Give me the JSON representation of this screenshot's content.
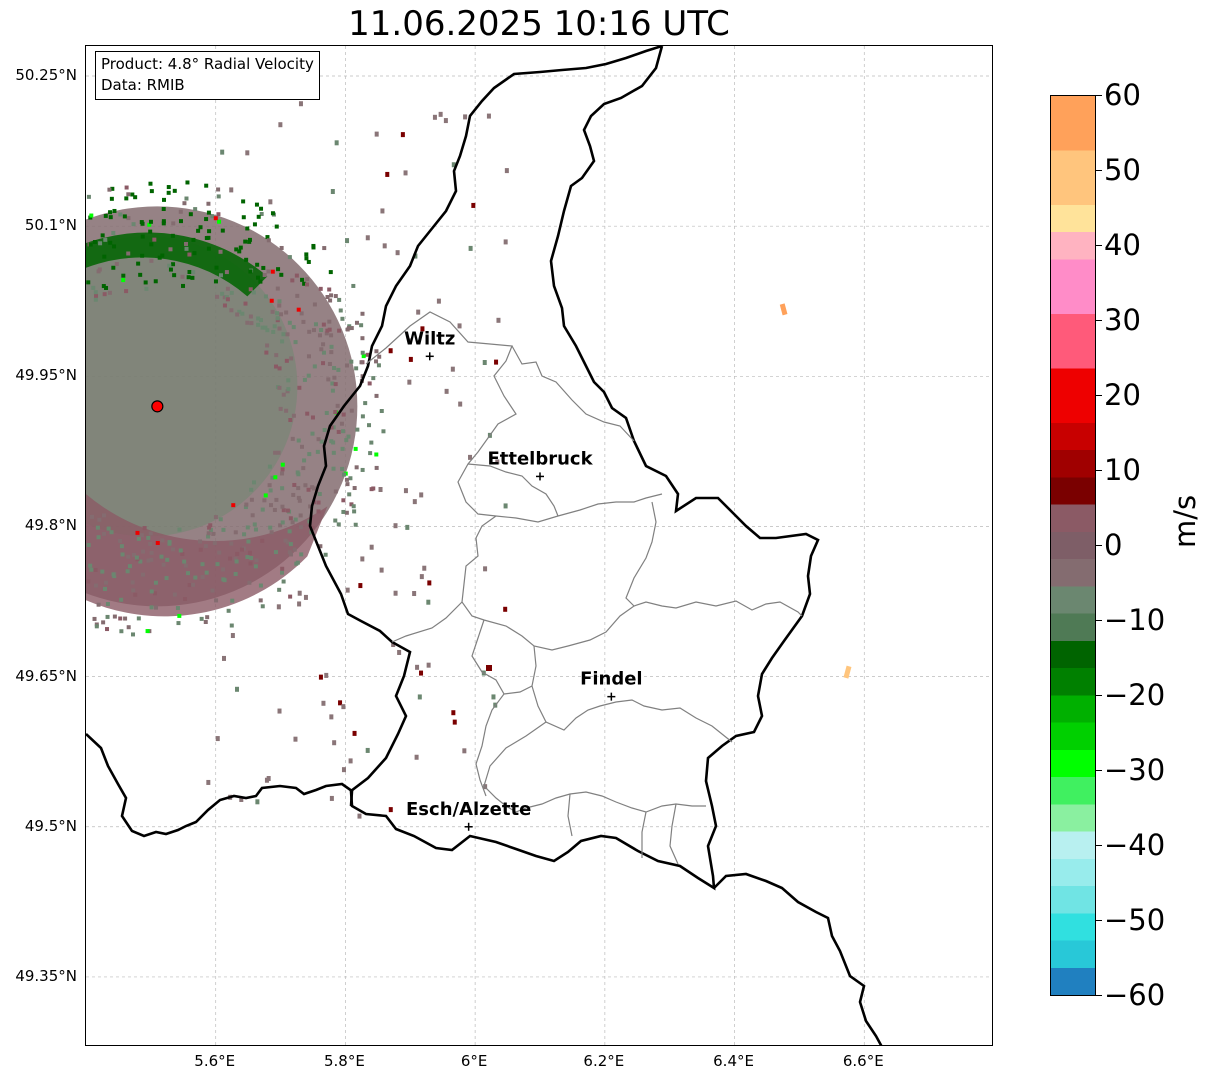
{
  "title": "11.06.2025 10:16 UTC",
  "info": {
    "product": "Product: 4.8° Radial Velocity",
    "data_source": "Data: RMIB"
  },
  "map": {
    "lon_range": [
      5.4,
      6.8
    ],
    "lat_range": [
      49.3,
      50.3
    ],
    "lat_ticks": [
      "50.25°N",
      "50.1°N",
      "49.95°N",
      "49.8°N",
      "49.65°N",
      "49.5°N",
      "49.35°N"
    ],
    "lon_ticks": [
      "5.6°E",
      "5.8°E",
      "6°E",
      "6.2°E",
      "6.4°E",
      "6.6°E"
    ],
    "cities": [
      {
        "name": "Wiltz",
        "lon": 5.93,
        "lat": 49.97
      },
      {
        "name": "Ettelbruck",
        "lon": 6.1,
        "lat": 49.85
      },
      {
        "name": "Findel",
        "lon": 6.21,
        "lat": 49.63
      },
      {
        "name": "Esch/Alzette",
        "lon": 5.99,
        "lat": 49.5
      }
    ],
    "radar_site": {
      "lon": 5.51,
      "lat": 49.92
    },
    "grid": true
  },
  "colorbar": {
    "unit": "m/s",
    "range": [
      -60,
      60
    ],
    "ticks": [
      "60",
      "50",
      "40",
      "30",
      "20",
      "10",
      "0",
      "−10",
      "−20",
      "−30",
      "−40",
      "−50",
      "−60"
    ],
    "colors": {
      "orange": "#ffa15a",
      "light_orange": "#ffc57d",
      "pale_yellow": "#ffe39a",
      "pink_light": "#ffb3c1",
      "pink": "#ff8cc8",
      "rose": "#ff5a7a",
      "red": "#ee0000",
      "dark_red": "#7a0000",
      "mauve": "#8b5a65",
      "grey_mauve": "#846c70",
      "grey_green": "#6b8770",
      "dark_green": "#006400",
      "green": "#00b000",
      "bright_green": "#00ff00",
      "light_green": "#8af0a0",
      "pale_cyan": "#b8f0f0",
      "cyan": "#30e0e0",
      "blue": "#2080c0"
    }
  }
}
